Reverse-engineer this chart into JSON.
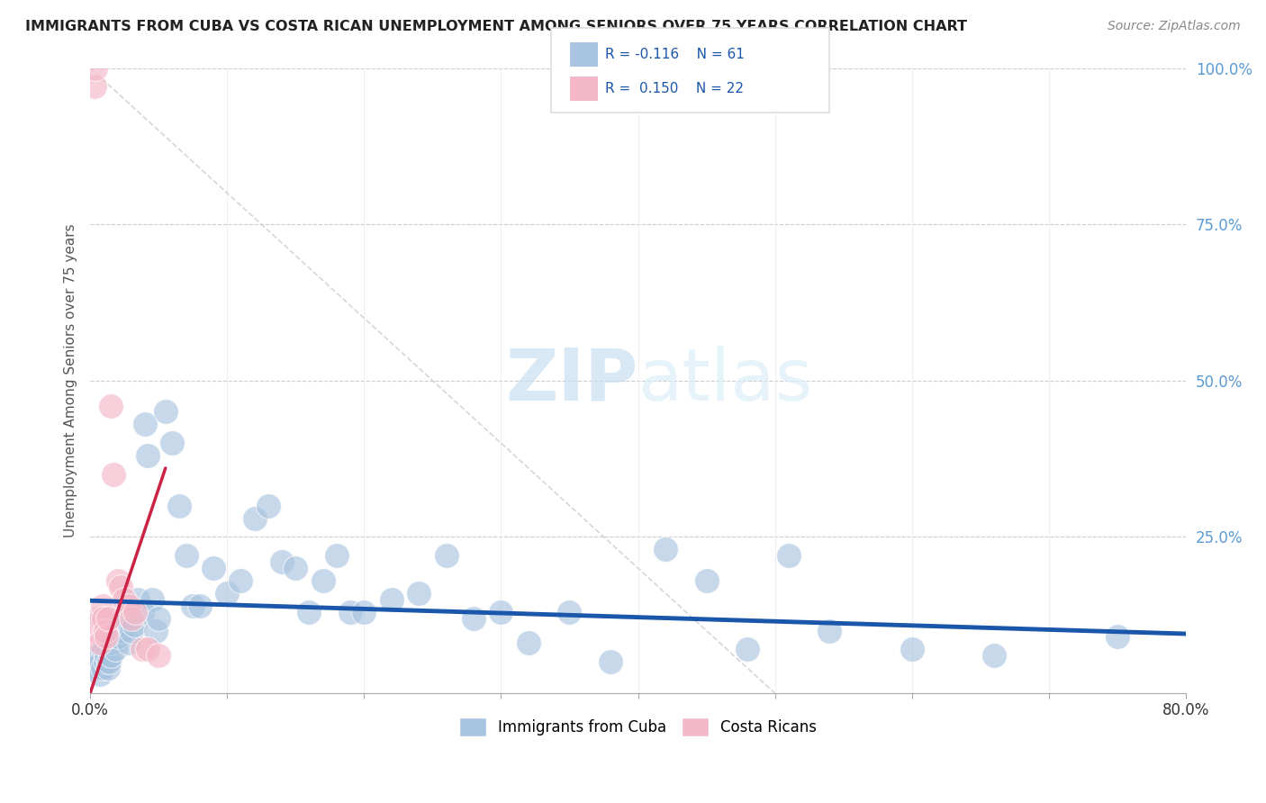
{
  "title": "IMMIGRANTS FROM CUBA VS COSTA RICAN UNEMPLOYMENT AMONG SENIORS OVER 75 YEARS CORRELATION CHART",
  "source": "Source: ZipAtlas.com",
  "ylabel": "Unemployment Among Seniors over 75 years",
  "xlim": [
    0.0,
    0.8
  ],
  "ylim": [
    0.0,
    1.0
  ],
  "legend_r1": "R = -0.116",
  "legend_n1": "N = 61",
  "legend_r2": "R =  0.150",
  "legend_n2": "N = 22",
  "watermark_zip": "ZIP",
  "watermark_atlas": "atlas",
  "blue_color": "#a8c4e0",
  "pink_color": "#f4b8c8",
  "trend_blue_color": "#1a56aa",
  "trend_pink_color": "#cc2244",
  "blue_scatter_x": [
    0.003,
    0.005,
    0.006,
    0.007,
    0.008,
    0.009,
    0.01,
    0.011,
    0.012,
    0.013,
    0.014,
    0.015,
    0.016,
    0.018,
    0.02,
    0.022,
    0.025,
    0.028,
    0.03,
    0.032,
    0.035,
    0.038,
    0.04,
    0.042,
    0.045,
    0.048,
    0.05,
    0.055,
    0.06,
    0.065,
    0.07,
    0.075,
    0.08,
    0.09,
    0.1,
    0.11,
    0.12,
    0.13,
    0.14,
    0.15,
    0.16,
    0.17,
    0.18,
    0.19,
    0.2,
    0.22,
    0.24,
    0.26,
    0.28,
    0.3,
    0.32,
    0.35,
    0.38,
    0.42,
    0.45,
    0.48,
    0.51,
    0.54,
    0.6,
    0.66,
    0.75
  ],
  "blue_scatter_y": [
    0.05,
    0.04,
    0.06,
    0.03,
    0.05,
    0.04,
    0.07,
    0.05,
    0.06,
    0.04,
    0.05,
    0.06,
    0.08,
    0.07,
    0.09,
    0.1,
    0.12,
    0.08,
    0.1,
    0.11,
    0.15,
    0.13,
    0.43,
    0.38,
    0.15,
    0.1,
    0.12,
    0.45,
    0.4,
    0.3,
    0.22,
    0.14,
    0.14,
    0.2,
    0.16,
    0.18,
    0.28,
    0.3,
    0.21,
    0.2,
    0.13,
    0.18,
    0.22,
    0.13,
    0.13,
    0.15,
    0.16,
    0.22,
    0.12,
    0.13,
    0.08,
    0.13,
    0.05,
    0.23,
    0.18,
    0.07,
    0.22,
    0.1,
    0.07,
    0.06,
    0.09
  ],
  "pink_scatter_x": [
    0.003,
    0.004,
    0.005,
    0.006,
    0.007,
    0.008,
    0.009,
    0.01,
    0.011,
    0.012,
    0.013,
    0.015,
    0.017,
    0.02,
    0.022,
    0.025,
    0.028,
    0.03,
    0.033,
    0.038,
    0.042,
    0.05
  ],
  "pink_scatter_y": [
    0.97,
    1.0,
    0.12,
    0.1,
    0.08,
    0.12,
    0.14,
    0.12,
    0.1,
    0.09,
    0.12,
    0.46,
    0.35,
    0.18,
    0.17,
    0.15,
    0.14,
    0.12,
    0.13,
    0.07,
    0.07,
    0.06
  ],
  "blue_trend_x": [
    0.0,
    0.8
  ],
  "blue_trend_y": [
    0.148,
    0.095
  ],
  "pink_trend_x": [
    0.0,
    0.055
  ],
  "pink_trend_y": [
    0.0,
    0.36
  ]
}
